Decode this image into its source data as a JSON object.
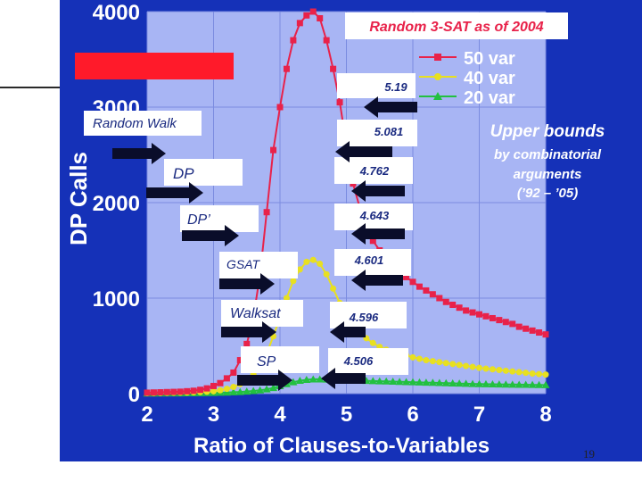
{
  "slide": {
    "page_number": "19",
    "colors": {
      "background_panel": "#1531b8",
      "plot_area": "#a8b5f4",
      "grid": "#7b8ce0"
    }
  },
  "chart_data": {
    "type": "line",
    "title": "Random 3-SAT as of 2004",
    "xlabel": "Ratio of Clauses-to-Variables",
    "ylabel": "DP Calls",
    "xlim": [
      2,
      8
    ],
    "ylim": [
      0,
      4000
    ],
    "x_ticks": [
      "2",
      "3",
      "4",
      "5",
      "6",
      "7",
      "8"
    ],
    "y_ticks": [
      "0",
      "1000",
      "2000",
      "3000",
      "4000"
    ],
    "grid": true,
    "legend": "top-right",
    "series": [
      {
        "name": "50 var",
        "color": "#e8224a",
        "marker": "square",
        "x": [
          2.0,
          2.1,
          2.2,
          2.3,
          2.4,
          2.5,
          2.6,
          2.7,
          2.8,
          2.9,
          3.0,
          3.1,
          3.2,
          3.3,
          3.4,
          3.5,
          3.6,
          3.7,
          3.8,
          3.9,
          4.0,
          4.1,
          4.2,
          4.3,
          4.4,
          4.5,
          4.6,
          4.7,
          4.8,
          4.9,
          5.0,
          5.1,
          5.2,
          5.3,
          5.4,
          5.5,
          5.6,
          5.7,
          5.8,
          5.9,
          6.0,
          6.1,
          6.2,
          6.3,
          6.4,
          6.5,
          6.6,
          6.7,
          6.8,
          6.9,
          7.0,
          7.1,
          7.2,
          7.3,
          7.4,
          7.5,
          7.6,
          7.7,
          7.8,
          7.9,
          8.0
        ],
        "values": [
          10,
          12,
          14,
          16,
          18,
          20,
          25,
          30,
          40,
          55,
          80,
          110,
          160,
          220,
          350,
          520,
          800,
          1250,
          1900,
          2550,
          3000,
          3400,
          3700,
          3880,
          3960,
          4000,
          3930,
          3700,
          3400,
          3050,
          2600,
          2200,
          1950,
          1750,
          1600,
          1500,
          1420,
          1340,
          1280,
          1220,
          1170,
          1120,
          1080,
          1040,
          1000,
          960,
          930,
          900,
          870,
          850,
          830,
          810,
          790,
          770,
          750,
          730,
          700,
          680,
          660,
          640,
          620
        ]
      },
      {
        "name": "40 var",
        "color": "#e8e020",
        "marker": "circle",
        "x": [
          2.0,
          2.1,
          2.2,
          2.3,
          2.4,
          2.5,
          2.6,
          2.7,
          2.8,
          2.9,
          3.0,
          3.1,
          3.2,
          3.3,
          3.4,
          3.5,
          3.6,
          3.7,
          3.8,
          3.9,
          4.0,
          4.1,
          4.2,
          4.3,
          4.4,
          4.5,
          4.6,
          4.7,
          4.8,
          4.9,
          5.0,
          5.1,
          5.2,
          5.3,
          5.4,
          5.5,
          5.6,
          5.7,
          5.8,
          5.9,
          6.0,
          6.1,
          6.2,
          6.3,
          6.4,
          6.5,
          6.6,
          6.7,
          6.8,
          6.9,
          7.0,
          7.1,
          7.2,
          7.3,
          7.4,
          7.5,
          7.6,
          7.7,
          7.8,
          7.9,
          8.0
        ],
        "values": [
          5,
          6,
          7,
          8,
          9,
          10,
          12,
          14,
          16,
          20,
          25,
          35,
          50,
          70,
          100,
          140,
          200,
          290,
          420,
          600,
          800,
          1000,
          1180,
          1300,
          1380,
          1400,
          1360,
          1250,
          1100,
          950,
          820,
          720,
          640,
          580,
          530,
          490,
          460,
          440,
          420,
          400,
          380,
          365,
          350,
          340,
          330,
          320,
          310,
          300,
          290,
          280,
          270,
          262,
          255,
          248,
          240,
          232,
          225,
          218,
          210,
          205,
          200
        ]
      },
      {
        "name": "20 var",
        "color": "#22c040",
        "marker": "triangle",
        "x": [
          2.0,
          2.1,
          2.2,
          2.3,
          2.4,
          2.5,
          2.6,
          2.7,
          2.8,
          2.9,
          3.0,
          3.1,
          3.2,
          3.3,
          3.4,
          3.5,
          3.6,
          3.7,
          3.8,
          3.9,
          4.0,
          4.1,
          4.2,
          4.3,
          4.4,
          4.5,
          4.6,
          4.7,
          4.8,
          4.9,
          5.0,
          5.1,
          5.2,
          5.3,
          5.4,
          5.5,
          5.6,
          5.7,
          5.8,
          5.9,
          6.0,
          6.1,
          6.2,
          6.3,
          6.4,
          6.5,
          6.6,
          6.7,
          6.8,
          6.9,
          7.0,
          7.1,
          7.2,
          7.3,
          7.4,
          7.5,
          7.6,
          7.7,
          7.8,
          7.9,
          8.0
        ],
        "values": [
          2,
          2,
          3,
          3,
          4,
          4,
          5,
          5,
          6,
          7,
          8,
          10,
          12,
          15,
          18,
          22,
          28,
          35,
          45,
          60,
          80,
          100,
          120,
          135,
          145,
          150,
          150,
          148,
          145,
          142,
          140,
          138,
          136,
          134,
          132,
          130,
          128,
          126,
          124,
          122,
          120,
          118,
          116,
          114,
          112,
          110,
          108,
          106,
          104,
          102,
          100,
          99,
          98,
          97,
          96,
          95,
          94,
          93,
          92,
          91,
          90
        ]
      }
    ],
    "annotations": {
      "upper_bounds": [
        "Upper bounds",
        "by combinatorial",
        "arguments",
        "(’92 – ’05)"
      ],
      "thresholds": [
        "5.19",
        "5.081",
        "4.762",
        "4.643",
        "4.601",
        "4.596",
        "4.506"
      ],
      "algorithms": [
        "Random Walk",
        "DP",
        "DP’",
        "GSAT",
        "Walksat",
        "SP"
      ]
    }
  }
}
